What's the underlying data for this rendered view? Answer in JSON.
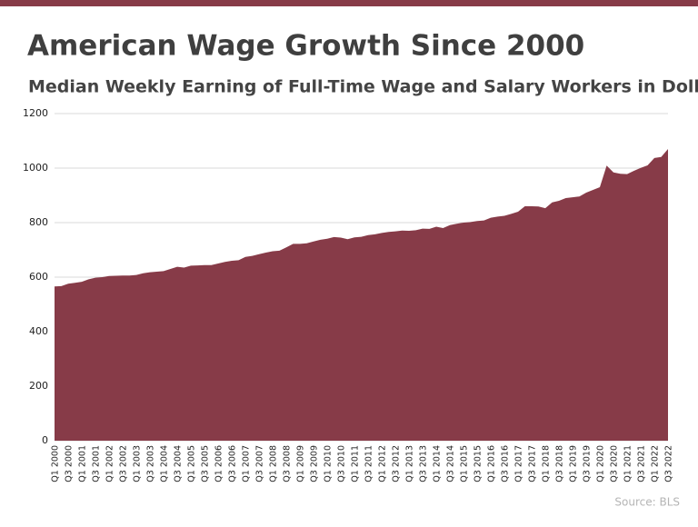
{
  "chart_data": {
    "type": "area",
    "title": "American Wage Growth Since 2000",
    "subtitle": "Median Weekly Earning of Full-Time Wage and Salary Workers in Dollars",
    "source": "Source: BLS",
    "color": "#873b48",
    "grid": true,
    "ylim": [
      0,
      1200
    ],
    "yticks": [
      0,
      200,
      400,
      600,
      800,
      1000,
      1200
    ],
    "categories": [
      "Q1 2000",
      null,
      "Q3 2000",
      null,
      "Q1 2001",
      null,
      "Q3 2001",
      null,
      "Q1 2002",
      null,
      "Q3 2002",
      null,
      "Q1 2003",
      null,
      "Q3 2003",
      null,
      "Q1 2004",
      null,
      "Q3 2004",
      null,
      "Q1 2005",
      null,
      "Q3 2005",
      null,
      "Q1 2006",
      null,
      "Q3 2006",
      null,
      "Q1 2007",
      null,
      "Q3 2007",
      null,
      "Q1 2008",
      null,
      "Q3 2008",
      null,
      "Q1 2009",
      null,
      "Q3 2009",
      null,
      "Q1 2010",
      null,
      "Q3 2010",
      null,
      "Q1 2011",
      null,
      "Q3 2011",
      null,
      "Q1 2012",
      null,
      "Q3 2012",
      null,
      "Q1 2013",
      null,
      "Q3 2013",
      null,
      "Q1 2014",
      null,
      "Q3 2014",
      null,
      "Q1 2015",
      null,
      "Q3 2015",
      null,
      "Q1 2016",
      null,
      "Q3 2016",
      null,
      "Q1 2017",
      null,
      "Q3 2017",
      null,
      "Q1 2018",
      null,
      "Q3 2018",
      null,
      "Q1 2019",
      null,
      "Q3 2019",
      null,
      "Q1 2020",
      null,
      "Q3 2020",
      null,
      "Q1 2021",
      null,
      "Q3 2021",
      null,
      "Q1 2022",
      null,
      "Q3 2022"
    ],
    "values": [
      566,
      567,
      576,
      579,
      583,
      592,
      598,
      600,
      604,
      605,
      606,
      606,
      608,
      614,
      618,
      620,
      622,
      630,
      638,
      635,
      642,
      643,
      644,
      644,
      650,
      656,
      660,
      662,
      674,
      678,
      684,
      690,
      695,
      697,
      709,
      722,
      722,
      724,
      731,
      737,
      741,
      747,
      745,
      739,
      746,
      748,
      754,
      757,
      762,
      766,
      768,
      771,
      770,
      772,
      778,
      777,
      785,
      780,
      791,
      796,
      800,
      802,
      806,
      808,
      818,
      822,
      825,
      832,
      840,
      860,
      860,
      859,
      853,
      874,
      880,
      890,
      893,
      896,
      910,
      920,
      930,
      1009,
      984,
      979,
      978,
      990,
      1001,
      1010,
      1037,
      1041,
      1070
    ]
  }
}
